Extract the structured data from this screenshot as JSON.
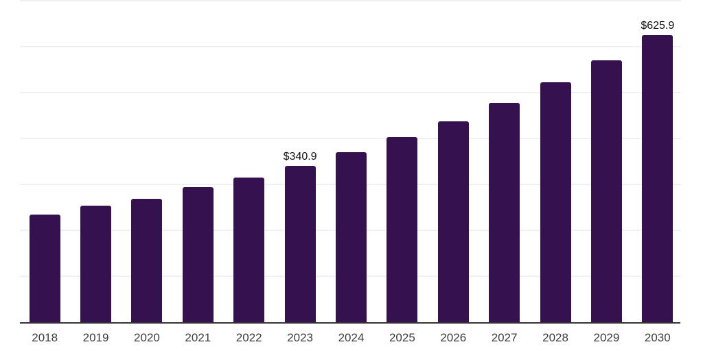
{
  "chart_data": {
    "type": "bar",
    "title": "",
    "xlabel": "",
    "ylabel": "",
    "categories": [
      "2018",
      "2019",
      "2020",
      "2021",
      "2022",
      "2023",
      "2024",
      "2025",
      "2026",
      "2027",
      "2028",
      "2029",
      "2030"
    ],
    "values": [
      234,
      254,
      269,
      294,
      315,
      340.9,
      370,
      403,
      437,
      478,
      522,
      570,
      625.9
    ],
    "data_labels": [
      "",
      "",
      "",
      "",
      "",
      "$340.9",
      "",
      "",
      "",
      "",
      "",
      "",
      "$625.9"
    ],
    "ylim": [
      0,
      700
    ],
    "grid": "horizontal",
    "grid_step": 100,
    "legend": "none",
    "y_tick_labels_visible": false,
    "colors": {
      "bar": "#35114F",
      "gridline": "#f0f0f2",
      "axis_line": "#333333",
      "x_label_text": "#3d3d3d",
      "data_label_text": "#111111",
      "background": "#ffffff"
    }
  }
}
